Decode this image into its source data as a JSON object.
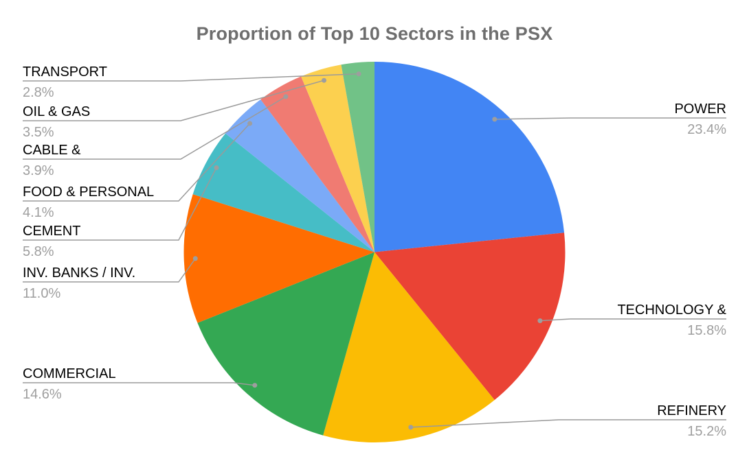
{
  "chart_data": {
    "type": "pie",
    "title": "Proportion of Top 10 Sectors in the PSX",
    "unit": "%",
    "start_angle_deg": 0,
    "direction": "clockwise",
    "legend_position": "callout-labels",
    "grid": false,
    "series": [
      {
        "label": "POWER",
        "value": 23.4,
        "display": "23.4%",
        "color": "#4285F4",
        "side": "right"
      },
      {
        "label": "TECHNOLOGY &",
        "value": 15.8,
        "display": "15.8%",
        "color": "#EA4335",
        "side": "right"
      },
      {
        "label": "REFINERY",
        "value": 15.2,
        "display": "15.2%",
        "color": "#FBBC04",
        "side": "right"
      },
      {
        "label": "COMMERCIAL",
        "value": 14.6,
        "display": "14.6%",
        "color": "#34A853",
        "side": "left"
      },
      {
        "label": "INV. BANKS / INV.",
        "value": 11.0,
        "display": "11.0%",
        "color": "#FF6D01",
        "side": "left"
      },
      {
        "label": "CEMENT",
        "value": 5.8,
        "display": "5.8%",
        "color": "#46BDC6",
        "side": "left"
      },
      {
        "label": "FOOD & PERSONAL",
        "value": 4.1,
        "display": "4.1%",
        "color": "#7BAAF7",
        "side": "left"
      },
      {
        "label": "CABLE &",
        "value": 3.9,
        "display": "3.9%",
        "color": "#F07B72",
        "side": "left"
      },
      {
        "label": "OIL & GAS",
        "value": 3.5,
        "display": "3.5%",
        "color": "#FCD04F",
        "side": "left"
      },
      {
        "label": "TRANSPORT",
        "value": 2.8,
        "display": "2.8%",
        "color": "#71C287",
        "side": "left"
      }
    ],
    "style_colors": {
      "title_text": "#6e6e6e",
      "label_text": "#000000",
      "percent_text": "#9e9e9e",
      "leader_line": "#9a9a9a",
      "background": "#ffffff"
    }
  }
}
